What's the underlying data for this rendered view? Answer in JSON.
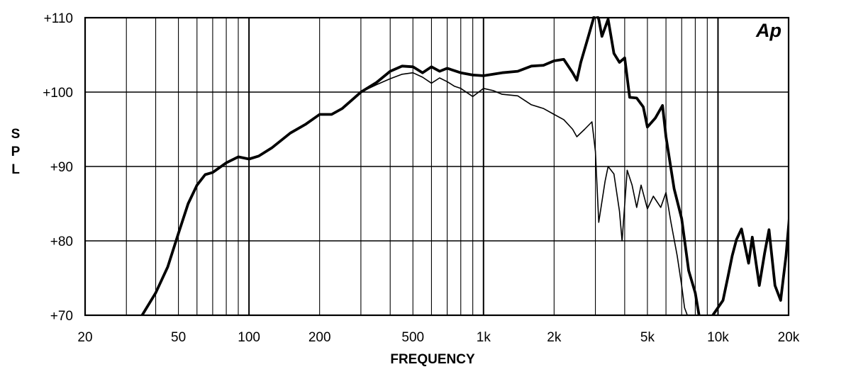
{
  "chart_data": {
    "type": "line",
    "xlabel": "FREQUENCY",
    "ylabel": "SPL",
    "x_scale": "log",
    "xlim": [
      20,
      20000
    ],
    "ylim": [
      70,
      110
    ],
    "x_ticks": [
      {
        "value": 20,
        "label": "20"
      },
      {
        "value": 50,
        "label": "50"
      },
      {
        "value": 100,
        "label": "100"
      },
      {
        "value": 200,
        "label": "200"
      },
      {
        "value": 500,
        "label": "500"
      },
      {
        "value": 1000,
        "label": "1k"
      },
      {
        "value": 2000,
        "label": "2k"
      },
      {
        "value": 5000,
        "label": "5k"
      },
      {
        "value": 10000,
        "label": "10k"
      },
      {
        "value": 20000,
        "label": "20k"
      }
    ],
    "y_ticks": [
      {
        "value": 70,
        "label": "+70"
      },
      {
        "value": 80,
        "label": "+80"
      },
      {
        "value": 90,
        "label": "+90"
      },
      {
        "value": 100,
        "label": "+100"
      },
      {
        "value": 110,
        "label": "+110"
      }
    ],
    "grid": true,
    "logo_text": "Ap",
    "colors": {
      "line": "#000000",
      "grid": "#000000",
      "background": "#ffffff"
    },
    "series": [
      {
        "style": "thick",
        "points": [
          [
            35,
            70
          ],
          [
            40,
            73
          ],
          [
            45,
            76.5
          ],
          [
            50,
            81
          ],
          [
            55,
            85
          ],
          [
            60,
            87.5
          ],
          [
            65,
            88.9
          ],
          [
            70,
            89.2
          ],
          [
            80,
            90.5
          ],
          [
            90,
            91.3
          ],
          [
            100,
            91
          ],
          [
            110,
            91.4
          ],
          [
            125,
            92.5
          ],
          [
            150,
            94.5
          ],
          [
            175,
            95.7
          ],
          [
            200,
            97
          ],
          [
            225,
            97
          ],
          [
            250,
            97.8
          ],
          [
            300,
            100
          ],
          [
            350,
            101.3
          ],
          [
            400,
            102.8
          ],
          [
            450,
            103.5
          ],
          [
            500,
            103.4
          ],
          [
            550,
            102.6
          ],
          [
            600,
            103.4
          ],
          [
            650,
            102.8
          ],
          [
            700,
            103.2
          ],
          [
            800,
            102.6
          ],
          [
            900,
            102.3
          ],
          [
            1000,
            102.2
          ],
          [
            1200,
            102.6
          ],
          [
            1400,
            102.8
          ],
          [
            1600,
            103.5
          ],
          [
            1800,
            103.6
          ],
          [
            2000,
            104.2
          ],
          [
            2200,
            104.4
          ],
          [
            2400,
            102.6
          ],
          [
            2500,
            101.6
          ],
          [
            2600,
            104
          ],
          [
            2800,
            107.5
          ],
          [
            3000,
            110.8
          ],
          [
            3100,
            109.8
          ],
          [
            3200,
            107.5
          ],
          [
            3400,
            109.8
          ],
          [
            3600,
            105.2
          ],
          [
            3800,
            104
          ],
          [
            4000,
            104.6
          ],
          [
            4200,
            99.3
          ],
          [
            4500,
            99.2
          ],
          [
            4800,
            98
          ],
          [
            5000,
            95.3
          ],
          [
            5400,
            96.5
          ],
          [
            5800,
            98.2
          ],
          [
            6000,
            94
          ],
          [
            6500,
            87
          ],
          [
            7000,
            83
          ],
          [
            7500,
            76
          ],
          [
            8000,
            73
          ],
          [
            8300,
            70
          ]
        ]
      },
      {
        "style": "thick",
        "points": [
          [
            9500,
            70
          ],
          [
            10500,
            72
          ],
          [
            11000,
            75
          ],
          [
            11500,
            78
          ],
          [
            12000,
            80.2
          ],
          [
            12600,
            81.6
          ],
          [
            13500,
            77
          ],
          [
            14000,
            80.5
          ],
          [
            15000,
            74
          ],
          [
            15800,
            78.3
          ],
          [
            16500,
            81.5
          ],
          [
            17500,
            74
          ],
          [
            18500,
            72
          ],
          [
            19500,
            78
          ],
          [
            20500,
            85.8
          ],
          [
            21000,
            78
          ]
        ]
      },
      {
        "style": "thin",
        "points": [
          [
            300,
            100
          ],
          [
            350,
            101
          ],
          [
            400,
            101.8
          ],
          [
            450,
            102.4
          ],
          [
            500,
            102.6
          ],
          [
            550,
            102
          ],
          [
            600,
            101.2
          ],
          [
            650,
            101.9
          ],
          [
            700,
            101.4
          ],
          [
            750,
            100.8
          ],
          [
            800,
            100.5
          ],
          [
            900,
            99.4
          ],
          [
            1000,
            100.5
          ],
          [
            1100,
            100.2
          ],
          [
            1200,
            99.7
          ],
          [
            1400,
            99.5
          ],
          [
            1600,
            98.3
          ],
          [
            1800,
            97.8
          ],
          [
            2000,
            97
          ],
          [
            2200,
            96.3
          ],
          [
            2400,
            95
          ],
          [
            2500,
            94
          ],
          [
            2700,
            95
          ],
          [
            2900,
            96
          ],
          [
            3000,
            92
          ],
          [
            3100,
            82.5
          ],
          [
            3300,
            88
          ],
          [
            3400,
            90
          ],
          [
            3600,
            89
          ],
          [
            3800,
            84
          ],
          [
            3900,
            80
          ],
          [
            4100,
            89.5
          ],
          [
            4300,
            87.5
          ],
          [
            4500,
            84.5
          ],
          [
            4700,
            87.5
          ],
          [
            5000,
            84.3
          ],
          [
            5300,
            86
          ],
          [
            5700,
            84.5
          ],
          [
            6000,
            86.5
          ],
          [
            6300,
            82.5
          ],
          [
            6700,
            78
          ],
          [
            7000,
            74
          ],
          [
            7200,
            71
          ],
          [
            7400,
            70
          ]
        ]
      }
    ]
  }
}
